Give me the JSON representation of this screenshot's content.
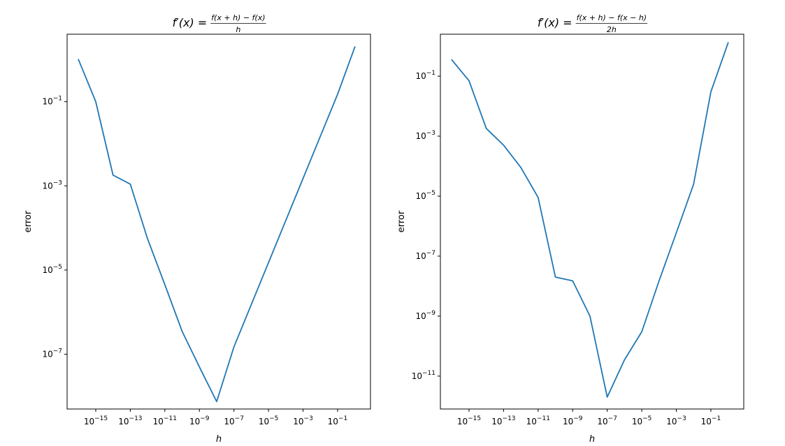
{
  "chart_data": [
    {
      "type": "line",
      "title": {
        "lhs": "f′(x) =",
        "numerator": "f(x + h) − f(x)",
        "denominator": "h"
      },
      "xlabel": "h",
      "ylabel": "error",
      "xscale": "log",
      "yscale": "log",
      "grid": false,
      "xlim": [
        2.2e-17,
        8
      ],
      "ylim": [
        5e-09,
        4
      ],
      "xticks": [
        1e-15,
        1e-13,
        1e-11,
        1e-09,
        1e-07,
        1e-05,
        0.001,
        0.1
      ],
      "xtick_labels": [
        "10−15",
        "10−13",
        "10−11",
        "10−9",
        "10−7",
        "10−5",
        "10−3",
        "10−1"
      ],
      "yticks": [
        0.1,
        0.001,
        1e-05,
        1e-07
      ],
      "ytick_labels": [
        "10−1",
        "10−3",
        "10−5",
        "10−7"
      ],
      "series": [
        {
          "color": "#1f77b4",
          "x": [
            1e-16,
            1e-15,
            1e-14,
            1e-13,
            1e-12,
            1e-11,
            1e-10,
            1e-09,
            1e-08,
            1e-07,
            1e-06,
            1e-05,
            0.0001,
            0.001,
            0.01,
            0.1,
            1
          ],
          "y": [
            1.0,
            0.1,
            0.0018,
            0.0011,
            5.5e-05,
            4.5e-06,
            3.5e-07,
            5e-08,
            7.5e-09,
            1.5e-07,
            1.5e-06,
            1.5e-05,
            0.00015,
            0.0015,
            0.015,
            0.15,
            2.0
          ]
        }
      ]
    },
    {
      "type": "line",
      "title": {
        "lhs": "f′(x) =",
        "numerator": "f(x + h) − f(x − h)",
        "denominator": "2h"
      },
      "xlabel": "h",
      "ylabel": "error",
      "xscale": "log",
      "yscale": "log",
      "grid": false,
      "xlim": [
        2.2e-17,
        8
      ],
      "ylim": [
        8e-13,
        2.5
      ],
      "xticks": [
        1e-15,
        1e-13,
        1e-11,
        1e-09,
        1e-07,
        1e-05,
        0.001,
        0.1
      ],
      "xtick_labels": [
        "10−15",
        "10−13",
        "10−11",
        "10−9",
        "10−7",
        "10−5",
        "10−3",
        "10−1"
      ],
      "yticks": [
        0.1,
        0.001,
        1e-05,
        1e-07,
        1e-09,
        1e-11
      ],
      "ytick_labels": [
        "10−1",
        "10−3",
        "10−5",
        "10−7",
        "10−9",
        "10−11"
      ],
      "series": [
        {
          "color": "#1f77b4",
          "x": [
            1e-16,
            1e-15,
            1e-14,
            1e-13,
            1e-12,
            1e-11,
            1e-10,
            1e-09,
            1e-08,
            1e-07,
            1e-06,
            1e-05,
            0.0001,
            0.001,
            0.01,
            0.1,
            1
          ],
          "y": [
            0.35,
            0.07,
            0.0018,
            0.0005,
            9e-05,
            9e-06,
            2e-08,
            1.5e-08,
            1e-09,
            2e-12,
            3.5e-11,
            3e-10,
            1.5e-08,
            6e-07,
            2.5e-05,
            0.03,
            1.3
          ]
        }
      ]
    }
  ]
}
